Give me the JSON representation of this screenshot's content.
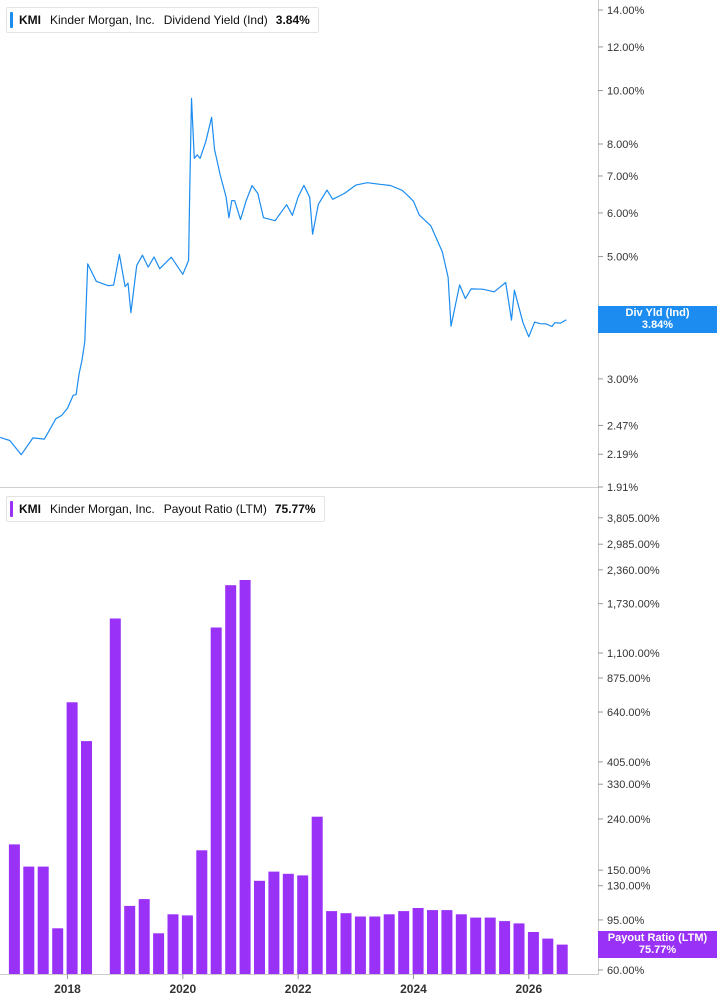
{
  "colors": {
    "yield_line": "#1c8cf0",
    "payout_bar": "#9a31f7",
    "grid": "#cccccc",
    "axis_text": "#333333"
  },
  "legend_top": {
    "ticker": "KMI",
    "company": "Kinder Morgan, Inc.",
    "metric": "Dividend Yield (Ind)",
    "value": "3.84%"
  },
  "legend_bottom": {
    "ticker": "KMI",
    "company": "Kinder Morgan, Inc.",
    "metric": "Payout Ratio (LTM)",
    "value": "75.77%"
  },
  "tag_top": {
    "label": "Div Yld (Ind)",
    "value": "3.84%"
  },
  "tag_bottom": {
    "label": "Payout Ratio (LTM)",
    "value": "75.77%"
  },
  "chart_data": [
    {
      "type": "line",
      "series": [
        {
          "name": "Dividend Yield (Ind)",
          "x": [
            2016.83,
            2017.0,
            2017.2,
            2017.4,
            2017.6,
            2017.8,
            2017.9,
            2018.0,
            2018.1,
            2018.15,
            2018.2,
            2018.25,
            2018.3,
            2018.35,
            2018.5,
            2018.7,
            2018.8,
            2018.9,
            2019.0,
            2019.05,
            2019.1,
            2019.2,
            2019.3,
            2019.4,
            2019.5,
            2019.6,
            2019.8,
            2020.0,
            2020.1,
            2020.12,
            2020.15,
            2020.2,
            2020.25,
            2020.3,
            2020.4,
            2020.5,
            2020.55,
            2020.65,
            2020.75,
            2020.8,
            2020.85,
            2020.9,
            2021.0,
            2021.1,
            2021.2,
            2021.3,
            2021.4,
            2021.6,
            2021.8,
            2021.9,
            2022.0,
            2022.1,
            2022.2,
            2022.25,
            2022.35,
            2022.5,
            2022.6,
            2022.8,
            2023.0,
            2023.2,
            2023.4,
            2023.6,
            2023.8,
            2023.9,
            2024.0,
            2024.1,
            2024.3,
            2024.5,
            2024.6,
            2024.65,
            2024.8,
            2024.9,
            2025.0,
            2025.2,
            2025.4,
            2025.6,
            2025.7,
            2025.75,
            2025.9,
            2026.0,
            2026.1,
            2026.2,
            2026.3,
            2026.4,
            2026.45,
            2026.55,
            2026.65
          ],
          "values": [
            2.35,
            2.3,
            2.22,
            2.3,
            2.38,
            2.5,
            2.6,
            2.65,
            2.78,
            2.85,
            3.0,
            3.3,
            3.45,
            4.9,
            4.5,
            4.4,
            4.5,
            4.95,
            4.5,
            4.4,
            4.0,
            4.8,
            5.0,
            4.85,
            4.9,
            4.85,
            4.9,
            4.7,
            4.9,
            6.5,
            9.8,
            7.4,
            7.8,
            7.4,
            8.2,
            8.9,
            7.8,
            7.1,
            6.3,
            6.0,
            6.2,
            6.4,
            5.8,
            6.3,
            6.8,
            6.4,
            6.0,
            5.7,
            6.3,
            5.9,
            6.4,
            6.8,
            6.3,
            5.6,
            6.1,
            6.7,
            6.3,
            6.5,
            6.8,
            6.7,
            6.9,
            6.6,
            6.7,
            6.4,
            6.3,
            6.0,
            5.6,
            5.2,
            4.5,
            3.8,
            4.4,
            4.2,
            4.4,
            4.3,
            4.4,
            4.4,
            3.9,
            4.3,
            3.8,
            3.6,
            3.75,
            3.85,
            3.7,
            3.8,
            3.75,
            3.8,
            3.84
          ]
        }
      ],
      "ylim": [
        1.91,
        14.0
      ],
      "log_scale": true,
      "y_ticks": [
        "14.00%",
        "12.00%",
        "10.00%",
        "8.00%",
        "7.00%",
        "6.00%",
        "5.00%",
        "3.00%",
        "2.47%",
        "2.19%",
        "1.91%"
      ],
      "y_tick_values": [
        14.0,
        12.0,
        10.0,
        8.0,
        7.0,
        6.0,
        5.0,
        3.0,
        2.47,
        2.19,
        1.91
      ],
      "xlim": [
        2016.83,
        2027.2
      ],
      "grid": false,
      "legend": "top-left"
    },
    {
      "type": "bar",
      "series": [
        {
          "name": "Payout Ratio (LTM)",
          "x": [
            2017.08,
            2017.33,
            2017.58,
            2017.83,
            2018.08,
            2018.33,
            2018.83,
            2019.08,
            2019.33,
            2019.58,
            2019.83,
            2020.08,
            2020.33,
            2020.58,
            2020.83,
            2021.08,
            2021.33,
            2021.58,
            2021.83,
            2022.08,
            2022.33,
            2022.58,
            2022.83,
            2023.08,
            2023.33,
            2023.58,
            2023.83,
            2024.08,
            2024.33,
            2024.58,
            2024.83,
            2025.08,
            2025.33,
            2025.58,
            2025.83,
            2026.08,
            2026.33,
            2026.58
          ],
          "values": [
            190,
            155,
            155,
            88,
            700,
            490,
            1510,
            108,
            115,
            84,
            100,
            99,
            180,
            1390,
            2050,
            2150,
            136,
            148,
            145,
            143,
            245,
            103,
            101,
            98,
            98,
            100,
            103,
            106,
            104,
            104,
            100,
            97,
            97,
            94,
            92,
            85,
            80,
            75.77
          ]
        }
      ],
      "ylim": [
        60,
        4200
      ],
      "log_scale": true,
      "y_ticks": [
        "3,805.00%",
        "2,985.00%",
        "2,360.00%",
        "1,730.00%",
        "1,100.00%",
        "875.00%",
        "640.00%",
        "405.00%",
        "330.00%",
        "240.00%",
        "150.00%",
        "130.00%",
        "95.00%",
        "60.00%"
      ],
      "y_tick_values": [
        3805,
        2985,
        2360,
        1730,
        1100,
        875,
        640,
        405,
        330,
        240,
        150,
        130,
        95,
        60
      ],
      "x_ticks": [
        "2018",
        "2020",
        "2022",
        "2024",
        "2026"
      ],
      "x_tick_values": [
        2018,
        2020,
        2022,
        2024,
        2026
      ],
      "xlim": [
        2016.83,
        2027.2
      ],
      "grid": false,
      "legend": "top-left"
    }
  ]
}
